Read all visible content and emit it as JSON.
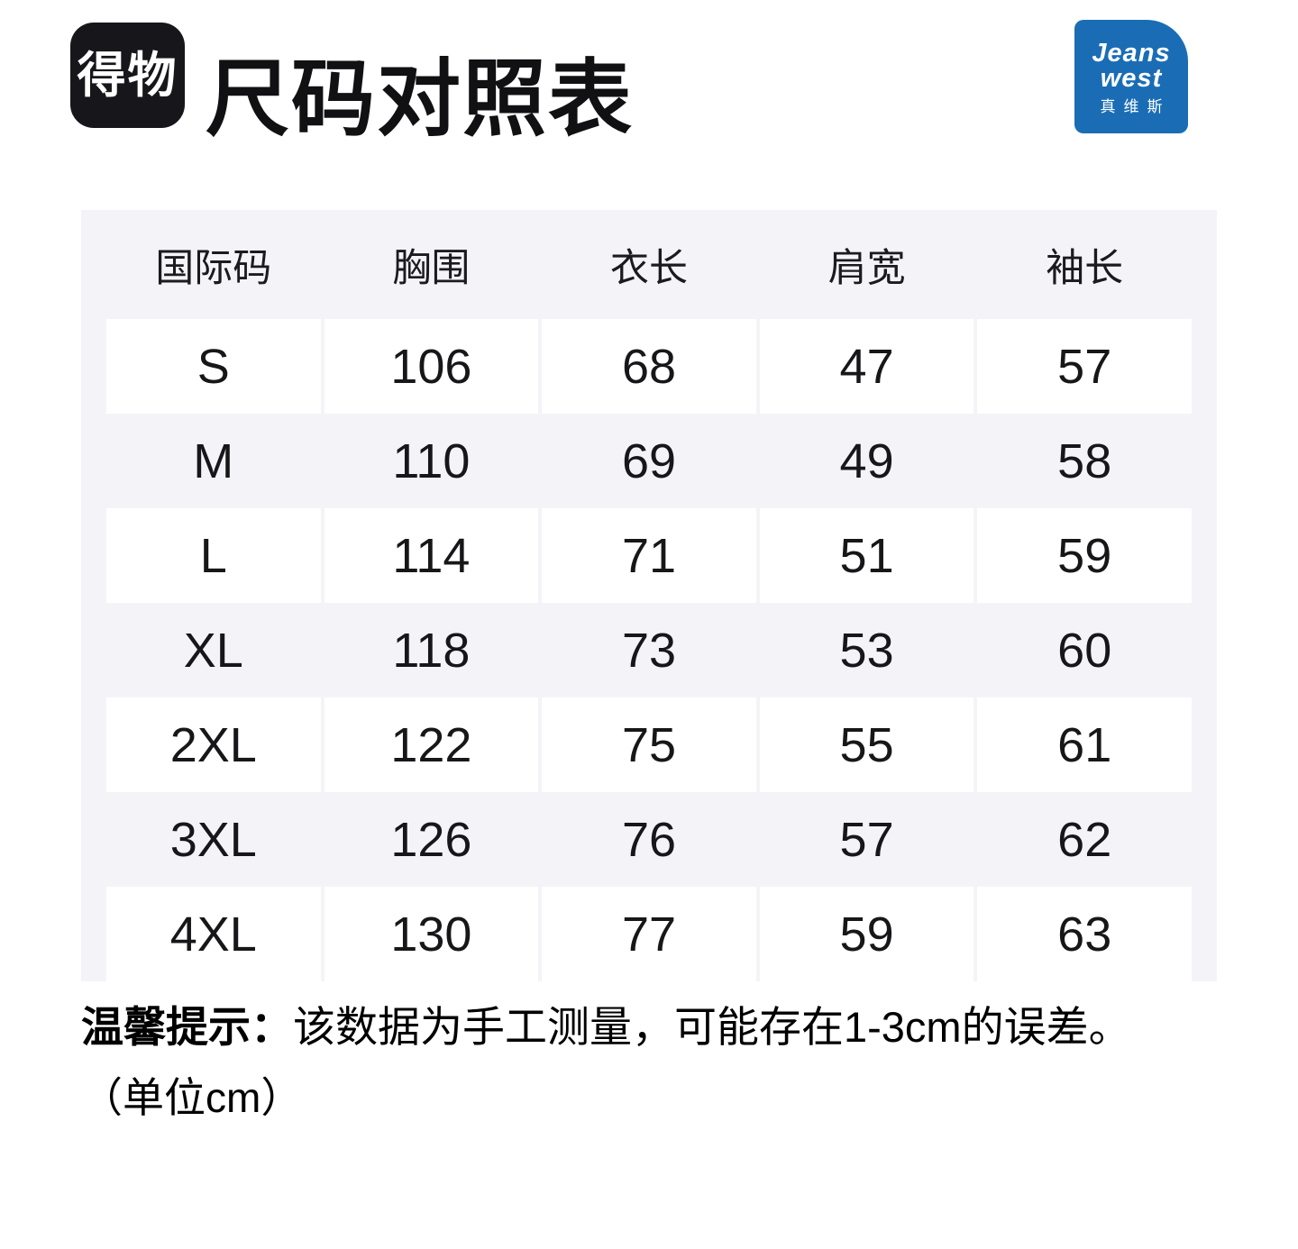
{
  "header": {
    "app_logo_text": "得物",
    "title": "尺码对照表",
    "brand_logo": {
      "line1": "Jeans",
      "line2": "west",
      "line3": "真维斯"
    }
  },
  "chart_data": {
    "type": "table",
    "title": "尺码对照表",
    "columns": [
      "国际码",
      "胸围",
      "衣长",
      "肩宽",
      "袖长"
    ],
    "rows": [
      {
        "size": "S",
        "chest": "106",
        "length": "68",
        "shoulder": "47",
        "sleeve": "57"
      },
      {
        "size": "M",
        "chest": "110",
        "length": "69",
        "shoulder": "49",
        "sleeve": "58"
      },
      {
        "size": "L",
        "chest": "114",
        "length": "71",
        "shoulder": "51",
        "sleeve": "59"
      },
      {
        "size": "XL",
        "chest": "118",
        "length": "73",
        "shoulder": "53",
        "sleeve": "60"
      },
      {
        "size": "2XL",
        "chest": "122",
        "length": "75",
        "shoulder": "55",
        "sleeve": "61"
      },
      {
        "size": "3XL",
        "chest": "126",
        "length": "76",
        "shoulder": "57",
        "sleeve": "62"
      },
      {
        "size": "4XL",
        "chest": "130",
        "length": "77",
        "shoulder": "59",
        "sleeve": "63"
      }
    ],
    "unit": "cm"
  },
  "note": {
    "prefix": "温馨提示：",
    "text": "该数据为手工测量，可能存在1-3cm的误差。",
    "unit": "（单位cm）"
  },
  "colors": {
    "brand_blue": "#1A6DB5",
    "app_logo_black": "#17171B",
    "table_background": "#F4F4F8",
    "cell_white": "#FFFFFF",
    "text_dark": "#17171A"
  }
}
